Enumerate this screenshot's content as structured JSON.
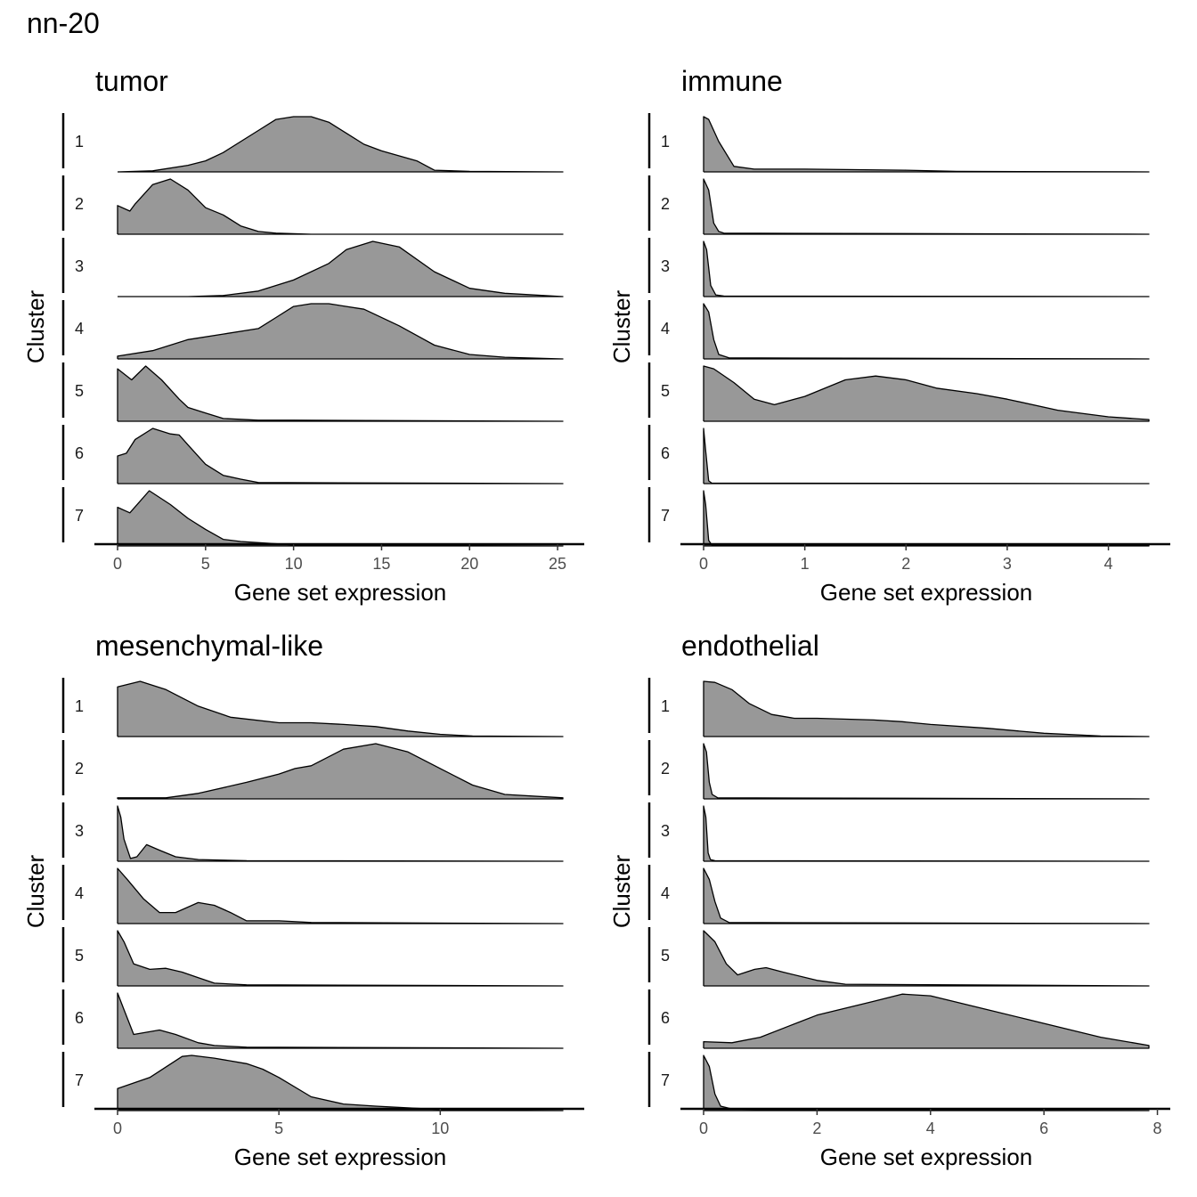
{
  "title": "nn-20",
  "fill_color": "#989898",
  "line_color": "#000000",
  "chart_data": [
    {
      "type": "ridgeline",
      "title": "tumor",
      "xlabel": "Gene set expression",
      "ylabel": "Cluster",
      "xlim": [
        0,
        25.3
      ],
      "xticks": [
        0,
        5,
        10,
        15,
        20,
        25
      ],
      "series": [
        {
          "name": "1",
          "x": [
            0,
            2,
            4,
            5,
            6,
            8,
            9,
            10,
            11,
            12,
            13,
            14,
            15,
            17,
            18,
            20,
            25.3
          ],
          "y": [
            0,
            0.02,
            0.12,
            0.2,
            0.35,
            0.75,
            0.95,
            1.0,
            1.0,
            0.9,
            0.7,
            0.5,
            0.38,
            0.2,
            0.03,
            0.01,
            0
          ]
        },
        {
          "name": "2",
          "x": [
            0,
            0.7,
            1,
            2,
            3,
            4,
            5,
            6,
            7,
            8,
            9,
            11,
            25.3
          ],
          "y": [
            0.52,
            0.42,
            0.55,
            0.9,
            1.0,
            0.8,
            0.48,
            0.35,
            0.15,
            0.05,
            0.02,
            0,
            0
          ]
        },
        {
          "name": "3",
          "x": [
            0,
            4,
            6,
            8,
            10,
            12,
            13,
            14.5,
            16,
            18,
            20,
            22,
            25.3
          ],
          "y": [
            0,
            0,
            0.02,
            0.1,
            0.3,
            0.6,
            0.85,
            1.0,
            0.9,
            0.45,
            0.15,
            0.06,
            0
          ]
        },
        {
          "name": "4",
          "x": [
            0,
            2,
            4,
            6,
            8,
            9,
            10,
            11,
            12,
            14,
            16,
            18,
            20,
            22,
            25.3
          ],
          "y": [
            0.05,
            0.15,
            0.35,
            0.45,
            0.55,
            0.75,
            0.95,
            1.0,
            1.0,
            0.9,
            0.6,
            0.25,
            0.08,
            0.03,
            0
          ]
        },
        {
          "name": "5",
          "x": [
            0,
            0.8,
            1.6,
            2.5,
            3.5,
            4,
            5,
            6,
            8,
            10,
            25.3
          ],
          "y": [
            0.95,
            0.75,
            1.0,
            0.75,
            0.4,
            0.25,
            0.15,
            0.05,
            0.02,
            0.02,
            0
          ]
        },
        {
          "name": "6",
          "x": [
            0,
            0.5,
            1,
            2,
            3,
            3.5,
            4,
            5,
            6,
            7,
            8,
            25.3
          ],
          "y": [
            0.5,
            0.55,
            0.8,
            1.0,
            0.9,
            0.88,
            0.7,
            0.35,
            0.15,
            0.08,
            0.02,
            0
          ]
        },
        {
          "name": "7",
          "x": [
            0,
            0.7,
            1.8,
            3,
            4,
            5,
            6,
            7,
            8,
            10,
            25.3
          ],
          "y": [
            0.7,
            0.6,
            1.0,
            0.75,
            0.5,
            0.3,
            0.12,
            0.08,
            0.06,
            0.02,
            0
          ]
        }
      ]
    },
    {
      "type": "ridgeline",
      "title": "immune",
      "xlabel": "Gene set expression",
      "ylabel": "Cluster",
      "xlim": [
        0,
        4.4
      ],
      "xticks": [
        0,
        1,
        2,
        3,
        4
      ],
      "series": [
        {
          "name": "1",
          "x": [
            0,
            0.05,
            0.15,
            0.3,
            0.5,
            1,
            1.5,
            2,
            2.5,
            4.4
          ],
          "y": [
            1.0,
            0.95,
            0.55,
            0.1,
            0.05,
            0.05,
            0.04,
            0.03,
            0.01,
            0
          ]
        },
        {
          "name": "2",
          "x": [
            0,
            0.05,
            0.1,
            0.15,
            0.2,
            4.4
          ],
          "y": [
            1.0,
            0.8,
            0.2,
            0.05,
            0.02,
            0
          ]
        },
        {
          "name": "3",
          "x": [
            0,
            0.03,
            0.07,
            0.12,
            0.2,
            4.4
          ],
          "y": [
            1.0,
            0.85,
            0.2,
            0.03,
            0.01,
            0
          ]
        },
        {
          "name": "4",
          "x": [
            0,
            0.05,
            0.1,
            0.15,
            0.25,
            4.4
          ],
          "y": [
            1.0,
            0.85,
            0.35,
            0.08,
            0.02,
            0
          ]
        },
        {
          "name": "5",
          "x": [
            0,
            0.1,
            0.3,
            0.5,
            0.7,
            1,
            1.4,
            1.7,
            2,
            2.3,
            2.7,
            3,
            3.5,
            4,
            4.4
          ],
          "y": [
            1.0,
            0.95,
            0.7,
            0.4,
            0.3,
            0.45,
            0.75,
            0.82,
            0.75,
            0.6,
            0.5,
            0.4,
            0.2,
            0.08,
            0.03
          ]
        },
        {
          "name": "6",
          "x": [
            0,
            0.02,
            0.05,
            0.08,
            4.4
          ],
          "y": [
            1.0,
            0.6,
            0.05,
            0.01,
            0
          ]
        },
        {
          "name": "7",
          "x": [
            0,
            0.02,
            0.05,
            0.08,
            1.3,
            4.4
          ],
          "y": [
            1.0,
            0.75,
            0.1,
            0.02,
            0.02,
            0.01
          ]
        }
      ]
    },
    {
      "type": "ridgeline",
      "title": "mesenchymal-like",
      "xlabel": "Gene set expression",
      "ylabel": "Cluster",
      "xlim": [
        0,
        13.8
      ],
      "xticks": [
        0,
        5,
        10
      ],
      "series": [
        {
          "name": "1",
          "x": [
            0,
            0.7,
            1.5,
            2.5,
            3.5,
            5,
            6,
            7,
            8,
            9,
            10,
            11,
            13.8
          ],
          "y": [
            0.9,
            1.0,
            0.85,
            0.55,
            0.35,
            0.25,
            0.25,
            0.22,
            0.18,
            0.1,
            0.04,
            0.01,
            0
          ]
        },
        {
          "name": "2",
          "x": [
            0,
            1.5,
            2.5,
            4,
            5,
            5.5,
            6,
            7,
            8,
            9,
            10,
            11,
            12,
            13.8
          ],
          "y": [
            0.02,
            0.02,
            0.1,
            0.3,
            0.45,
            0.55,
            0.6,
            0.9,
            1.0,
            0.85,
            0.55,
            0.25,
            0.08,
            0.02
          ]
        },
        {
          "name": "3",
          "x": [
            0,
            0.1,
            0.2,
            0.4,
            0.6,
            0.9,
            1.3,
            1.8,
            2.5,
            4,
            13.8
          ],
          "y": [
            1.0,
            0.8,
            0.4,
            0.05,
            0.08,
            0.3,
            0.2,
            0.08,
            0.03,
            0.01,
            0
          ]
        },
        {
          "name": "4",
          "x": [
            0,
            0.3,
            0.8,
            1.3,
            1.8,
            2.5,
            3,
            3.5,
            4,
            5,
            6,
            13.8
          ],
          "y": [
            1.0,
            0.8,
            0.45,
            0.2,
            0.2,
            0.38,
            0.33,
            0.2,
            0.05,
            0.05,
            0.02,
            0
          ]
        },
        {
          "name": "5",
          "x": [
            0,
            0.2,
            0.5,
            1,
            1.5,
            2,
            2.5,
            3,
            4,
            13.8
          ],
          "y": [
            1.0,
            0.8,
            0.4,
            0.3,
            0.32,
            0.25,
            0.15,
            0.05,
            0.02,
            0
          ]
        },
        {
          "name": "6",
          "x": [
            0,
            0.2,
            0.5,
            1,
            1.3,
            1.8,
            2.5,
            3,
            4,
            13.8
          ],
          "y": [
            1.0,
            0.7,
            0.25,
            0.3,
            0.33,
            0.25,
            0.1,
            0.05,
            0.02,
            0
          ]
        },
        {
          "name": "7",
          "x": [
            0,
            1,
            2,
            2.3,
            3,
            4,
            4.5,
            5,
            6,
            7,
            8,
            10,
            13.8
          ],
          "y": [
            0.4,
            0.6,
            0.98,
            1.0,
            0.95,
            0.85,
            0.75,
            0.6,
            0.25,
            0.12,
            0.08,
            0.02,
            0
          ]
        }
      ]
    },
    {
      "type": "ridgeline",
      "title": "endothelial",
      "xlabel": "Gene set expression",
      "ylabel": "Cluster",
      "xlim": [
        0,
        7.85
      ],
      "xticks": [
        0,
        2,
        4,
        6,
        8
      ],
      "series": [
        {
          "name": "1",
          "x": [
            0,
            0.2,
            0.5,
            0.8,
            1.2,
            1.6,
            2,
            3,
            3.5,
            4,
            5,
            6,
            7,
            7.85
          ],
          "y": [
            1.0,
            0.98,
            0.85,
            0.6,
            0.4,
            0.33,
            0.33,
            0.3,
            0.27,
            0.22,
            0.15,
            0.06,
            0.01,
            0
          ]
        },
        {
          "name": "2",
          "x": [
            0,
            0.05,
            0.1,
            0.15,
            0.25,
            7.85
          ],
          "y": [
            1.0,
            0.85,
            0.3,
            0.08,
            0.02,
            0
          ]
        },
        {
          "name": "3",
          "x": [
            0,
            0.04,
            0.08,
            0.12,
            0.2,
            7.85
          ],
          "y": [
            1.0,
            0.8,
            0.15,
            0.03,
            0.01,
            0
          ]
        },
        {
          "name": "4",
          "x": [
            0,
            0.1,
            0.2,
            0.3,
            0.45,
            7.85
          ],
          "y": [
            1.0,
            0.8,
            0.4,
            0.1,
            0.02,
            0
          ]
        },
        {
          "name": "5",
          "x": [
            0,
            0.2,
            0.4,
            0.6,
            0.9,
            1.1,
            1.4,
            2,
            2.5,
            7.85
          ],
          "y": [
            1.0,
            0.8,
            0.4,
            0.2,
            0.3,
            0.33,
            0.25,
            0.1,
            0.03,
            0
          ]
        },
        {
          "name": "6",
          "x": [
            0,
            0.5,
            1,
            1.5,
            2,
            3,
            3.5,
            4,
            5,
            6,
            7,
            7.85
          ],
          "y": [
            0.12,
            0.1,
            0.2,
            0.4,
            0.6,
            0.85,
            0.98,
            0.95,
            0.7,
            0.45,
            0.2,
            0.05
          ]
        },
        {
          "name": "7",
          "x": [
            0,
            0.1,
            0.2,
            0.3,
            0.5,
            1,
            7.85
          ],
          "y": [
            1.0,
            0.8,
            0.3,
            0.08,
            0.03,
            0.02,
            0
          ]
        }
      ]
    }
  ]
}
